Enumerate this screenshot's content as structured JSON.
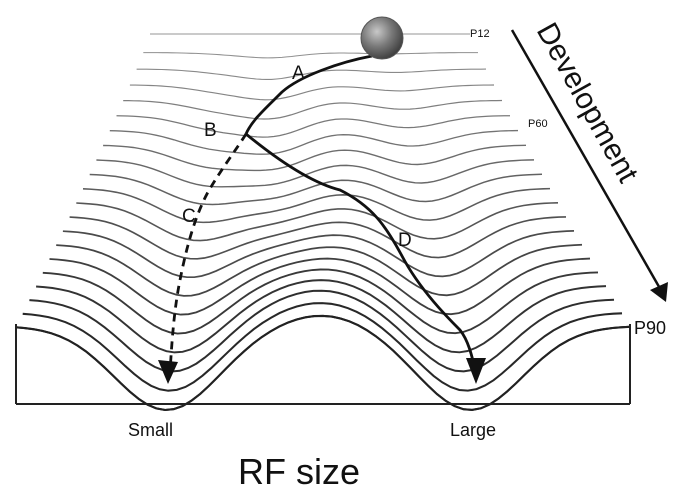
{
  "diagram": {
    "title": "RF size",
    "x_labels": {
      "left": "Small",
      "right": "Large"
    },
    "development_label": "Development",
    "stages": {
      "start": "P12",
      "middle": "P60",
      "end": "P90"
    },
    "paths": [
      {
        "id": "A",
        "label": "A",
        "style": "solid"
      },
      {
        "id": "B",
        "label": "B",
        "style": "solid"
      },
      {
        "id": "C",
        "label": "C",
        "style": "dashed"
      },
      {
        "id": "D",
        "label": "D",
        "style": "solid"
      }
    ],
    "colors": {
      "lines": "#222222",
      "ball": "#7a7a7a"
    }
  }
}
